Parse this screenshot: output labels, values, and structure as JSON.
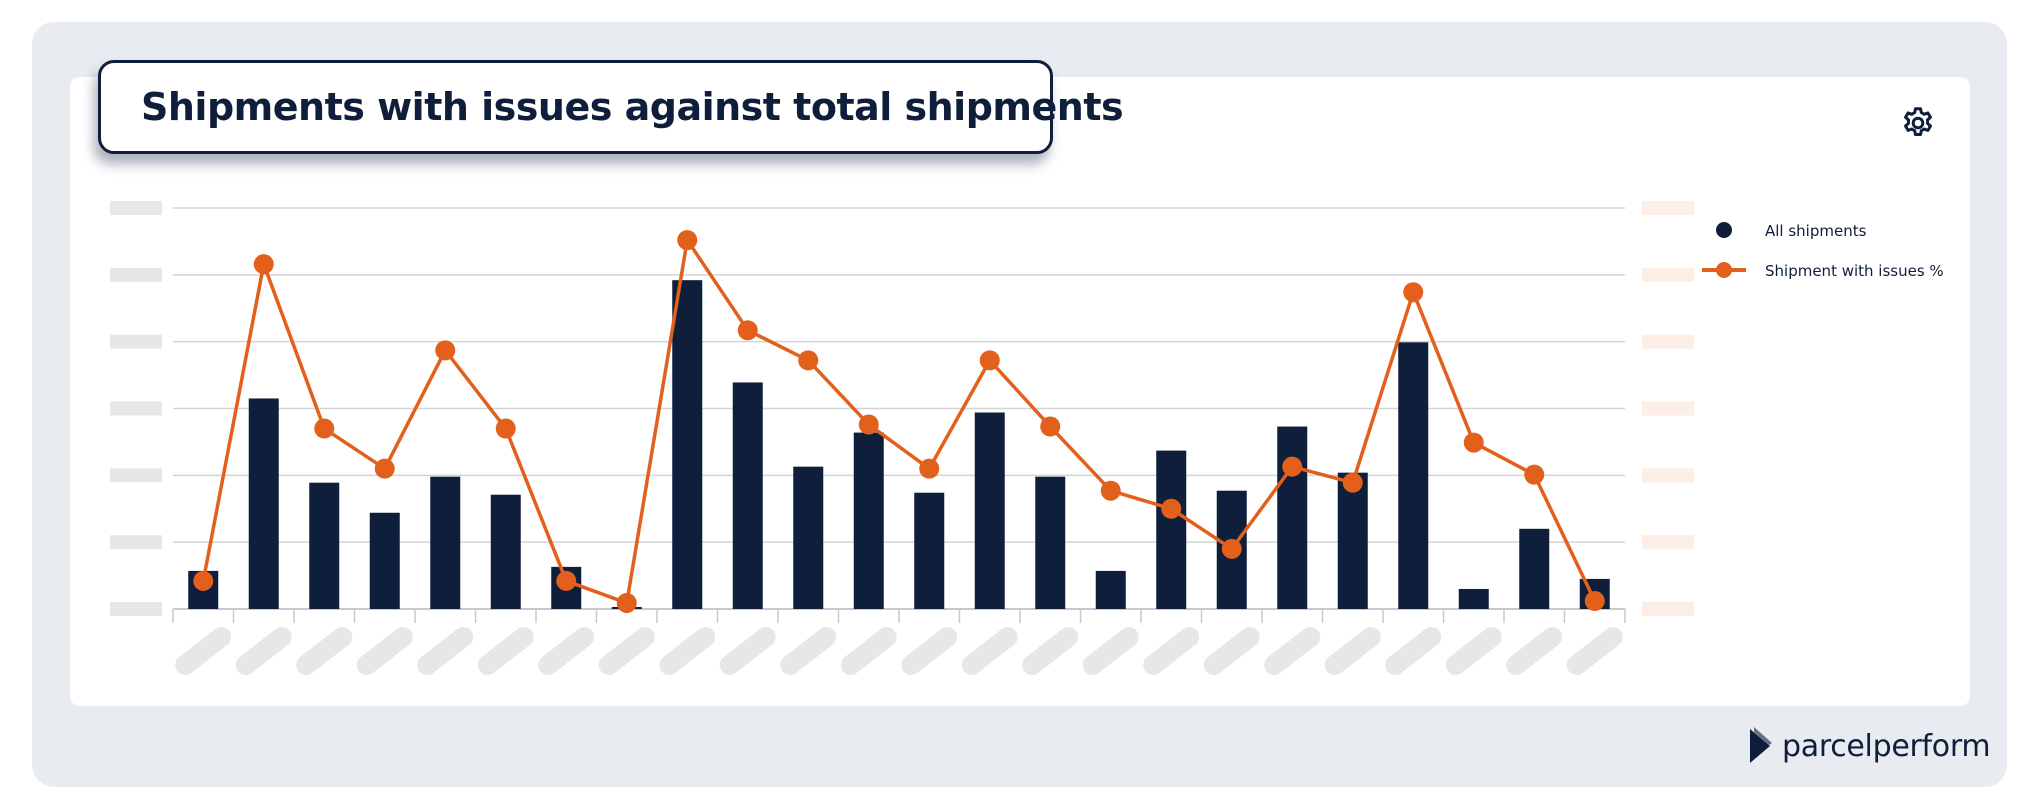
{
  "title": "Shipments with issues against total shipments",
  "colors": {
    "bar": "#0f1e3a",
    "line": "#e2601b",
    "placeholder_gray": "#e7e7e7",
    "placeholder_peach": "#fdeee6",
    "grid": "#d4d4d4"
  },
  "icons": {
    "settings": "gear-icon",
    "brand_logo": "parcelperform-logo-icon"
  },
  "brand": {
    "name": "parcelperform"
  },
  "chart_data": {
    "type": "bar",
    "categories": [
      "",
      "",
      "",
      "",
      "",
      "",
      "",
      "",
      "",
      "",
      "",
      "",
      "",
      "",
      "",
      "",
      "",
      "",
      "",
      "",
      "",
      "",
      "",
      ""
    ],
    "series": [
      {
        "name": "All shipments",
        "type": "bar",
        "axis": "left",
        "values": [
          0.95,
          5.25,
          3.15,
          2.4,
          3.3,
          2.85,
          1.05,
          0.05,
          8.2,
          5.65,
          3.55,
          4.4,
          2.9,
          4.9,
          3.3,
          0.95,
          3.95,
          2.95,
          4.55,
          3.4,
          6.65,
          0.5,
          2.0,
          0.75
        ]
      },
      {
        "name": "Shipment with issues %",
        "type": "line",
        "axis": "right",
        "values": [
          0.7,
          8.6,
          4.5,
          3.5,
          6.45,
          4.5,
          0.7,
          0.15,
          9.2,
          6.95,
          6.2,
          4.6,
          3.5,
          6.2,
          4.55,
          2.95,
          2.5,
          1.5,
          3.55,
          3.15,
          7.9,
          4.15,
          3.35,
          0.2
        ]
      }
    ],
    "ylim_left": [
      0,
      10
    ],
    "ylim_right": [
      0,
      10
    ],
    "yticks": 6,
    "axis_labels_hidden": true,
    "grid": true,
    "legend": "right"
  }
}
